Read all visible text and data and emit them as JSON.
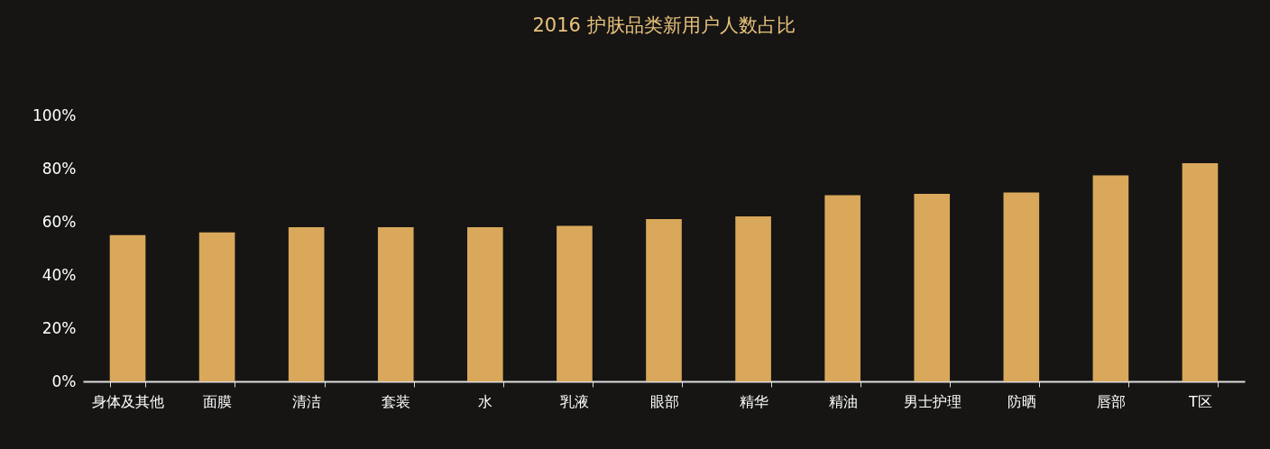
{
  "chart_data": {
    "type": "bar",
    "title": "2016 护肤品类新用户人数占比",
    "categories": [
      "身体及其他",
      "面膜",
      "清洁",
      "套装",
      "水",
      "乳液",
      "眼部",
      "精华",
      "精油",
      "男士护理",
      "防晒",
      "唇部",
      "T区"
    ],
    "values": [
      55,
      56,
      58,
      58,
      58,
      58.5,
      61,
      62,
      70,
      70.5,
      71,
      77.5,
      82
    ],
    "color": "#d9a85a",
    "ylim": [
      0,
      100
    ],
    "yticks": [
      {
        "value": 0,
        "label": "0%"
      },
      {
        "value": 20,
        "label": "20%"
      },
      {
        "value": 40,
        "label": "40%"
      },
      {
        "value": 60,
        "label": "60%"
      },
      {
        "value": 80,
        "label": "80%"
      },
      {
        "value": 100,
        "label": "100%"
      }
    ],
    "grid": false
  }
}
